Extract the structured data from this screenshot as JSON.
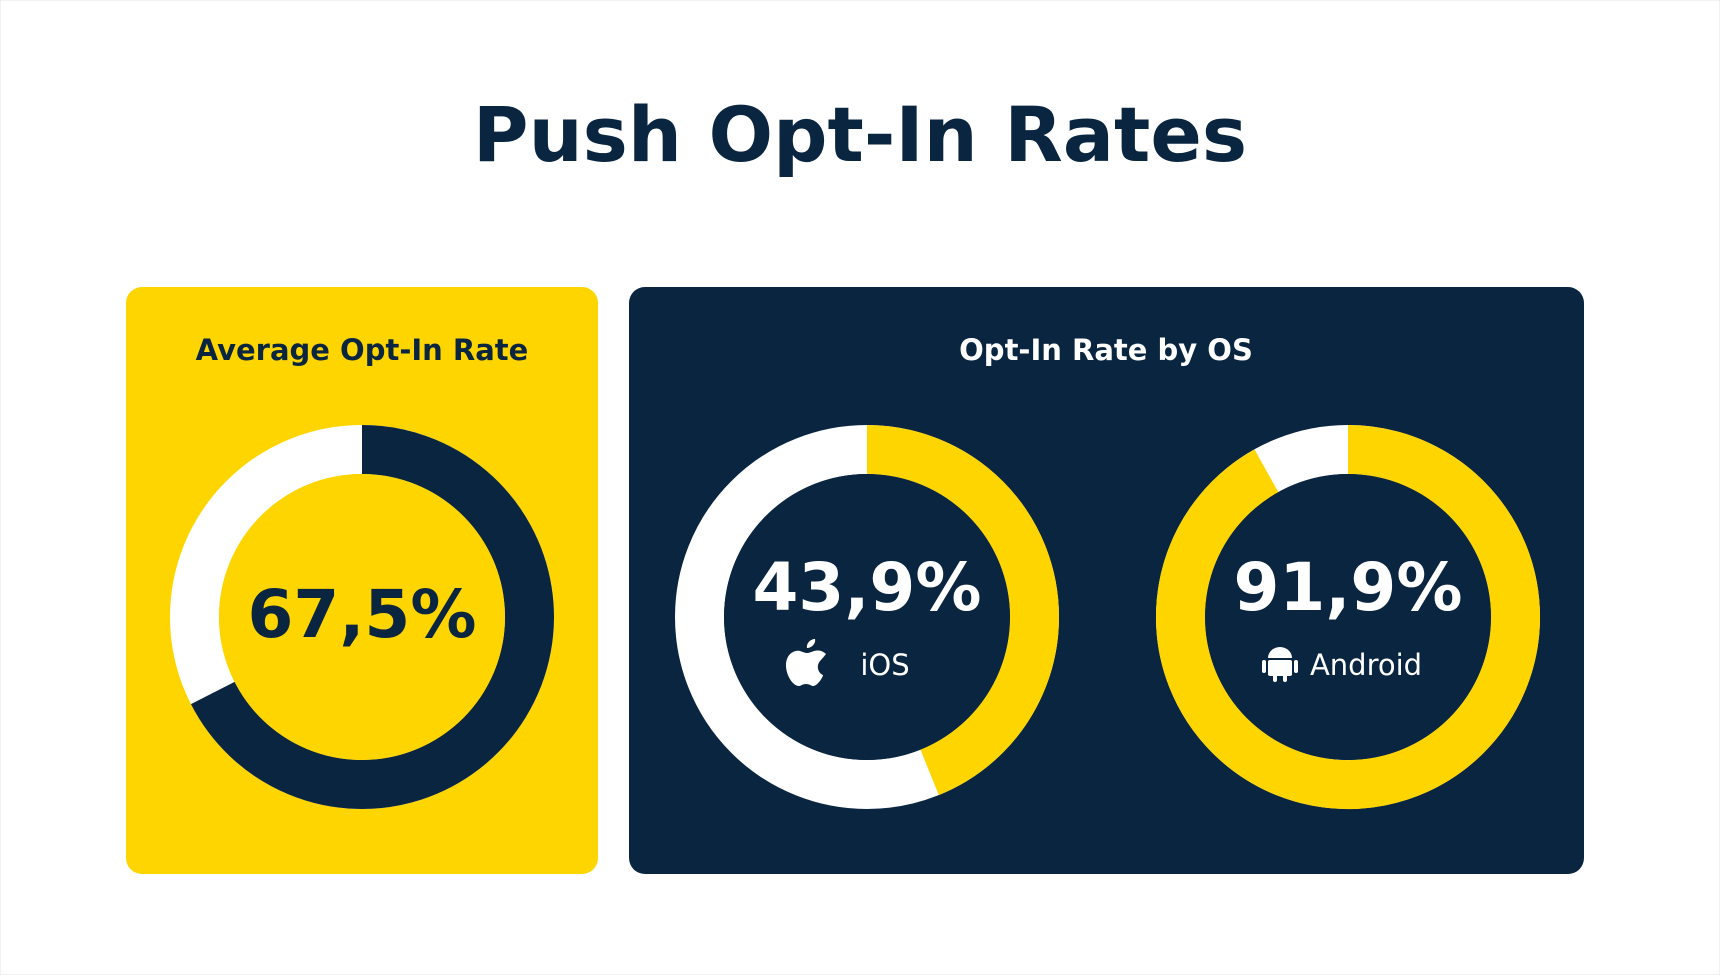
{
  "title": "Push Opt-In Rates",
  "panels": [
    {
      "title": "Average Opt-In Rate",
      "chart_data": [
        {
          "type": "donut",
          "values": [
            67.5
          ],
          "value_labels": [
            "67,5%"
          ],
          "color": "#0a2540",
          "track_color": "#ffffff",
          "center_color": "#ffd500",
          "label_color": "#0a2540"
        }
      ]
    },
    {
      "title": "Opt-In Rate by OS",
      "chart_data": [
        {
          "type": "donut",
          "label": "iOS",
          "values": [
            43.9
          ],
          "value_labels": [
            "43,9%"
          ],
          "color": "#ffd500",
          "track_color": "#ffffff",
          "center_color": "#0a2540",
          "label_color": "#ffffff"
        },
        {
          "type": "donut",
          "label": "Android",
          "values": [
            91.9
          ],
          "value_labels": [
            "91,9%"
          ],
          "color": "#ffd500",
          "track_color": "#ffffff",
          "center_color": "#0a2540",
          "label_color": "#ffffff"
        }
      ]
    }
  ]
}
